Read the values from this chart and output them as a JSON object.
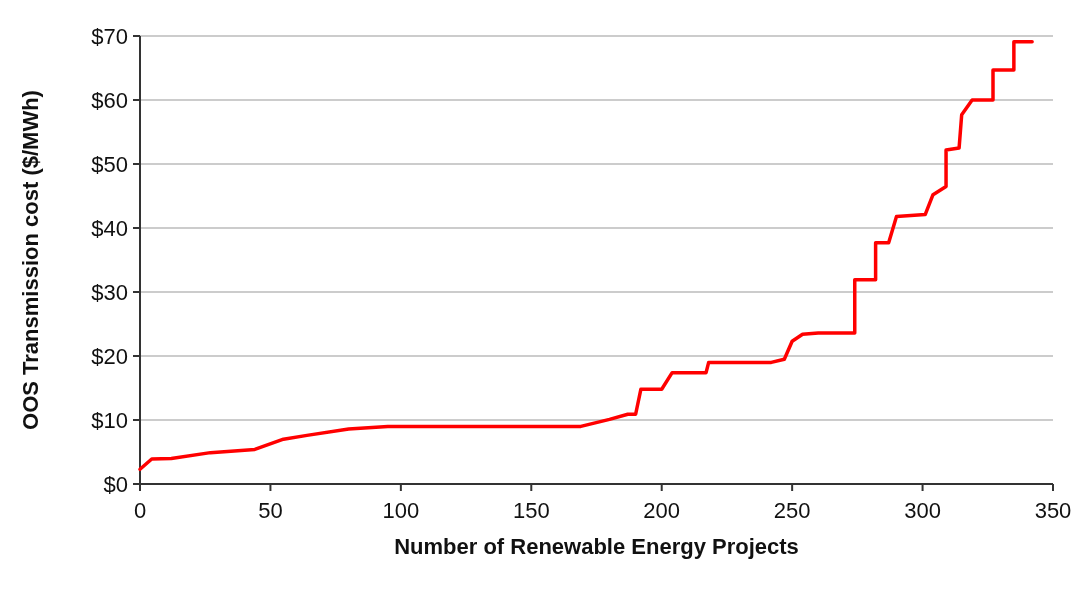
{
  "chart_data": {
    "type": "line",
    "xlabel": "Number of Renewable Energy Projects",
    "ylabel": "OOS Transmission cost ($/MWh)",
    "x": [
      0,
      4.5,
      12,
      27,
      44,
      55,
      64,
      80,
      95,
      169,
      180,
      187,
      190,
      192,
      200,
      204,
      217,
      218,
      242,
      247,
      250,
      254,
      260,
      274,
      274,
      282,
      282,
      287,
      290,
      301,
      304,
      309,
      309,
      314,
      315,
      319,
      327,
      327,
      335,
      335,
      342
    ],
    "series": [
      {
        "color": "#ff0000",
        "values": [
          2.3,
          3.9,
          4.0,
          4.9,
          5.4,
          7.0,
          7.6,
          8.6,
          9.0,
          9.0,
          10.1,
          10.9,
          10.9,
          14.8,
          14.8,
          17.4,
          17.4,
          19.0,
          19.0,
          19.5,
          22.3,
          23.4,
          23.6,
          23.6,
          31.9,
          31.9,
          37.7,
          37.7,
          41.8,
          42.1,
          45.2,
          46.5,
          52.2,
          52.5,
          57.7,
          60.0,
          60.0,
          64.7,
          64.7,
          69.1,
          69.1
        ]
      }
    ],
    "xlim": [
      0,
      350
    ],
    "xticks": [
      0,
      50,
      100,
      150,
      200,
      250,
      300,
      350
    ],
    "ylim": [
      0,
      70
    ],
    "yticks": [
      {
        "value": 0,
        "label": "$0"
      },
      {
        "value": 10,
        "label": "$10"
      },
      {
        "value": 20,
        "label": "$20"
      },
      {
        "value": 30,
        "label": "$30"
      },
      {
        "value": 40,
        "label": "$40"
      },
      {
        "value": 50,
        "label": "$50"
      },
      {
        "value": 60,
        "label": "$60"
      },
      {
        "value": 70,
        "label": "$70"
      }
    ],
    "grid": "y",
    "marker": "none",
    "line_style": "solid"
  }
}
